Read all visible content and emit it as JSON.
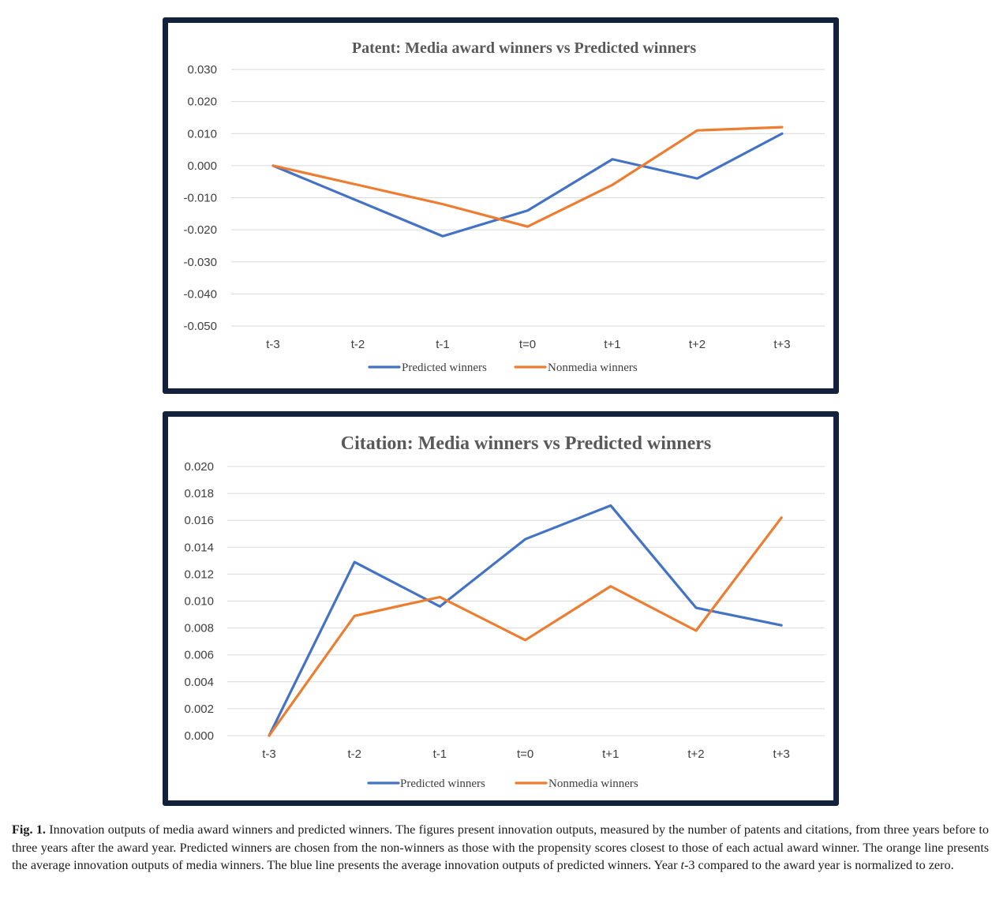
{
  "colors": {
    "predicted": "#4472c4",
    "nonmedia": "#ed7d31",
    "grid": "#d9d9d9",
    "frame": "#14213d"
  },
  "chart_data": [
    {
      "type": "line",
      "title": "Patent: Media award winners vs Predicted winners",
      "categories": [
        "t-3",
        "t-2",
        "t-1",
        "t=0",
        "t+1",
        "t+2",
        "t+3"
      ],
      "series": [
        {
          "name": "Predicted winners",
          "values": [
            0.0,
            -0.011,
            -0.022,
            -0.014,
            0.002,
            -0.004,
            0.01
          ]
        },
        {
          "name": "Nonmedia winners",
          "values": [
            0.0,
            -0.006,
            -0.012,
            -0.019,
            -0.006,
            0.011,
            0.012
          ]
        }
      ],
      "yticks": [
        "0.030",
        "0.020",
        "0.010",
        "0.000",
        "-0.010",
        "-0.020",
        "-0.030",
        "-0.040",
        "-0.050"
      ],
      "ylim": [
        -0.05,
        0.03
      ],
      "xlabel": "",
      "ylabel": "",
      "grid": true,
      "legend": "bottom"
    },
    {
      "type": "line",
      "title": "Citation: Media winners vs Predicted winners",
      "categories": [
        "t-3",
        "t-2",
        "t-1",
        "t=0",
        "t+1",
        "t+2",
        "t+3"
      ],
      "series": [
        {
          "name": "Predicted winners",
          "values": [
            0.0,
            0.0129,
            0.0096,
            0.0146,
            0.0171,
            0.0095,
            0.0082
          ]
        },
        {
          "name": "Nonmedia winners",
          "values": [
            0.0,
            0.0089,
            0.0103,
            0.0071,
            0.0111,
            0.0078,
            0.0162
          ]
        }
      ],
      "yticks": [
        "0.020",
        "0.018",
        "0.016",
        "0.014",
        "0.012",
        "0.010",
        "0.008",
        "0.006",
        "0.004",
        "0.002",
        "0.000"
      ],
      "ylim": [
        0,
        0.02
      ],
      "xlabel": "",
      "ylabel": "",
      "grid": true,
      "legend": "bottom"
    }
  ],
  "caption": {
    "label": "Fig. 1.",
    "text_before": " Innovation outputs of media award winners and predicted winners. The figures present innovation outputs, measured by the number of patents and citations, from three years before to three years after the award year. Predicted winners are chosen from the non-winners as those with the propensity scores closest to those of each actual award winner. The orange line presents the average innovation outputs of media winners. The blue line presents the average innovation outputs of predicted winners. Year ",
    "italic": "t",
    "text_after": "-3 compared to the award year is normalized to zero."
  }
}
